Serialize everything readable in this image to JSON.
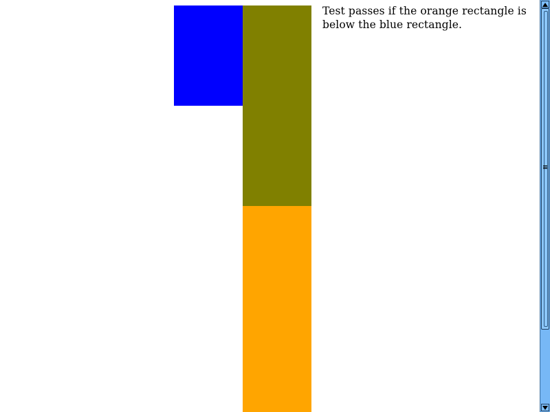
{
  "instruction": {
    "text": "Test passes if the orange rectangle is below the blue rectangle."
  },
  "shapes": {
    "blue": {
      "color": "#0000ff"
    },
    "olive": {
      "color": "#808000"
    },
    "orange": {
      "color": "#ffa500"
    }
  },
  "scrollbar": {
    "up_icon": "arrow-up-icon",
    "down_icon": "arrow-down-icon"
  }
}
